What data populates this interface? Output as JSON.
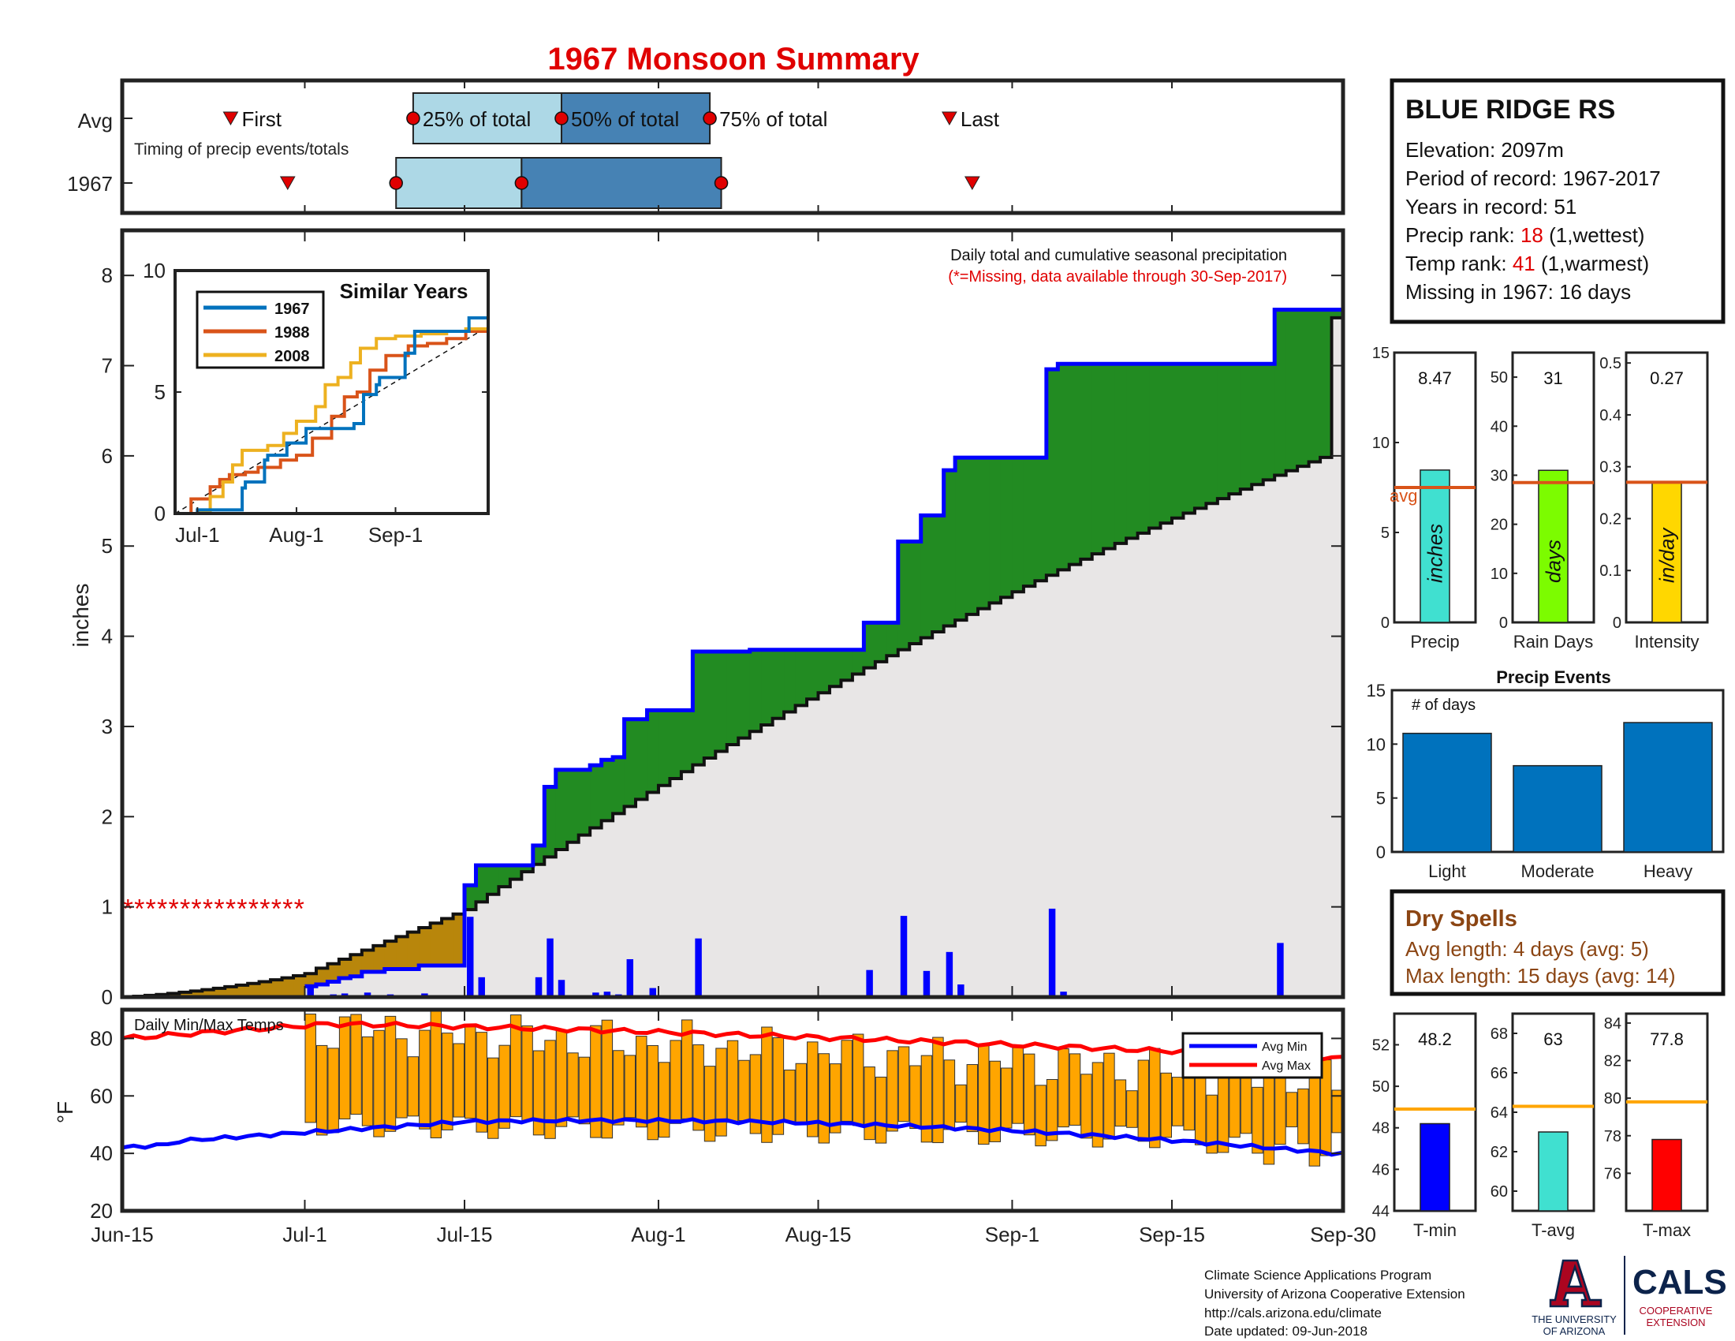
{
  "title": "1967 Monsoon Summary",
  "timing": {
    "row_labels": [
      "Avg",
      "1967"
    ],
    "note": "Timing of precip events/totals",
    "markers": {
      "first": "First",
      "last": "Last",
      "q25": "25% of total",
      "q50": "50% of total",
      "q75": "75% of total"
    },
    "avg_days": {
      "first": 9.5,
      "q25": 25.5,
      "q50": 38.5,
      "q75": 51.5,
      "last": 72.5
    },
    "y1967_days": {
      "first": 14.5,
      "q25": 24,
      "q50": 35,
      "q75": 52.5,
      "last": 74.5
    }
  },
  "station": {
    "name": "BLUE RIDGE RS",
    "elevation_label": "Elevation: 2097m",
    "period_label": "Period of record: 1967-2017",
    "years_label": "Years in record: 51",
    "precip_rank_prefix": "Precip rank: ",
    "precip_rank": "18",
    "precip_rank_suffix": " (1,wettest)",
    "temp_rank_prefix": "Temp rank: ",
    "temp_rank": "41",
    "temp_rank_suffix": " (1,warmest)",
    "missing_label": "Missing in 1967: 16 days"
  },
  "x_ticks": [
    {
      "label": "Jun-15",
      "day": 0
    },
    {
      "label": "Jul-1",
      "day": 16
    },
    {
      "label": "Jul-15",
      "day": 30
    },
    {
      "label": "Aug-1",
      "day": 47
    },
    {
      "label": "Aug-15",
      "day": 61
    },
    {
      "label": "Sep-1",
      "day": 78
    },
    {
      "label": "Sep-15",
      "day": 92
    },
    {
      "label": "Sep-30",
      "day": 107
    }
  ],
  "main_chart": {
    "ylabel": "inches",
    "ylim": [
      0,
      8.5
    ],
    "yticks": [
      0,
      1,
      2,
      3,
      4,
      5,
      6,
      7,
      8
    ],
    "note": "Daily total and cumulative seasonal precipitation",
    "missing_note": "(*=Missing, data available through 30-Sep-2017)",
    "missing_days": [
      0,
      1,
      2,
      3,
      4,
      5,
      6,
      7,
      8,
      9,
      10,
      11,
      12,
      13,
      14,
      15
    ],
    "missing_marker": "*"
  },
  "inset": {
    "title": "Similar Years",
    "legend": [
      "1967",
      "1988",
      "2008"
    ],
    "colors": [
      "#0072bd",
      "#d95319",
      "#edb120"
    ],
    "ylim": [
      0,
      10
    ],
    "yticks": [
      0,
      5,
      10
    ],
    "xticks": [
      "Jul-1",
      "Aug-1",
      "Sep-1"
    ]
  },
  "summary_bars": [
    {
      "label": "Precip",
      "value": 8.47,
      "value_label": "8.47",
      "avg": 7.5,
      "ylim": [
        0,
        15
      ],
      "yticks": [
        0,
        5,
        10,
        15
      ],
      "unit": "inches",
      "avg_label": "avg",
      "color": "#40e0d0"
    },
    {
      "label": "Rain Days",
      "value": 31,
      "value_label": "31",
      "avg": 28.5,
      "ylim": [
        0,
        55
      ],
      "yticks": [
        0,
        10,
        20,
        30,
        40,
        50
      ],
      "unit": "days",
      "color": "#7cfc00"
    },
    {
      "label": "Intensity",
      "value": 0.27,
      "value_label": "0.27",
      "avg": 0.27,
      "ylim": [
        0,
        0.52
      ],
      "yticks": [
        0,
        0.1,
        0.2,
        0.3,
        0.4,
        0.5
      ],
      "unit": "in/day",
      "color": "#ffd700"
    }
  ],
  "precip_events": {
    "title": "Precip Events",
    "subtitle": "# of days",
    "categories": [
      "Light",
      "Moderate",
      "Heavy"
    ],
    "values": [
      11,
      8,
      12
    ],
    "ylim": [
      0,
      15
    ],
    "yticks": [
      0,
      5,
      10,
      15
    ],
    "color": "#0072bd"
  },
  "dry_spells": {
    "title": "Dry Spells",
    "avg_length": "Avg length: 4 days (avg: 5)",
    "max_length": "Max length: 15 days (avg: 14)"
  },
  "temps": {
    "label": "Daily Min/Max Temps",
    "ylabel": "°F",
    "ylim": [
      20,
      90
    ],
    "yticks": [
      20,
      40,
      60,
      80
    ],
    "legend": [
      "Avg Min",
      "Avg Max"
    ],
    "legend_colors": [
      "#0000ff",
      "#ff0000"
    ],
    "bar_color": "#ffa500"
  },
  "temp_bars": [
    {
      "label": "T-min",
      "value": 48.2,
      "value_label": "48.2",
      "avg": 48.9,
      "ylim": [
        44,
        53.5
      ],
      "yticks": [
        44,
        46,
        48,
        50,
        52
      ],
      "color": "#0000ff"
    },
    {
      "label": "T-avg",
      "value": 63,
      "value_label": "63",
      "avg": 64.3,
      "ylim": [
        59,
        69
      ],
      "yticks": [
        60,
        62,
        64,
        66,
        68
      ],
      "color": "#40e0d0"
    },
    {
      "label": "T-max",
      "value": 77.8,
      "value_label": "77.8",
      "avg": 79.8,
      "ylim": [
        74,
        84.5
      ],
      "yticks": [
        76,
        78,
        80,
        82,
        84
      ],
      "color": "#ff0000"
    }
  ],
  "footer": {
    "lines": [
      "Climate Science Applications Program",
      "University of Arizona Cooperative Extension",
      "http://cals.arizona.edu/climate",
      " Date updated: 09-Jun-2018"
    ],
    "ua_logo_text": [
      "THE UNIVERSITY",
      "OF ARIZONA"
    ],
    "cals_logo": "CALS",
    "cals_sub": [
      "COOPERATIVE",
      "EXTENSION"
    ]
  }
}
